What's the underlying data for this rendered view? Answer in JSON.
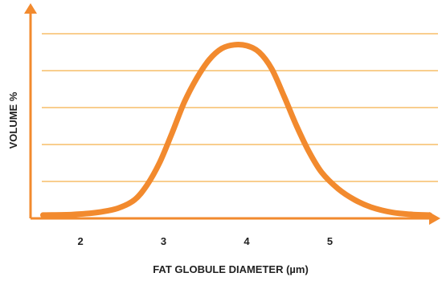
{
  "chart_data": {
    "type": "line",
    "title": "",
    "xlabel": "FAT GLOBULE DIAMETER (µm)",
    "ylabel": "VOLUME %",
    "x_ticks": [
      2,
      3,
      4,
      5
    ],
    "xlim": [
      1.4,
      6.3
    ],
    "ylim": [
      0,
      100
    ],
    "y_gridlines": [
      20,
      40,
      60,
      80,
      100
    ],
    "grid": true,
    "series": [
      {
        "name": "",
        "color": "#F28A2E",
        "points": [
          [
            1.55,
            1.8
          ],
          [
            1.9,
            2.1
          ],
          [
            2.2,
            3.2
          ],
          [
            2.45,
            5.5
          ],
          [
            2.65,
            10
          ],
          [
            2.8,
            18
          ],
          [
            2.95,
            30
          ],
          [
            3.1,
            46
          ],
          [
            3.25,
            63
          ],
          [
            3.4,
            76
          ],
          [
            3.55,
            86
          ],
          [
            3.7,
            92
          ],
          [
            3.85,
            94
          ],
          [
            4.0,
            93.5
          ],
          [
            4.15,
            90
          ],
          [
            4.3,
            81
          ],
          [
            4.45,
            66
          ],
          [
            4.6,
            50
          ],
          [
            4.75,
            36
          ],
          [
            4.9,
            25
          ],
          [
            5.1,
            16
          ],
          [
            5.3,
            10
          ],
          [
            5.5,
            6
          ],
          [
            5.75,
            3.2
          ],
          [
            6.0,
            2.1
          ],
          [
            6.2,
            1.8
          ]
        ]
      }
    ],
    "colors": {
      "axis": "#F28A2E",
      "grid": "#F5B04A",
      "curve": "#F28A2E",
      "text": "#222222"
    }
  }
}
